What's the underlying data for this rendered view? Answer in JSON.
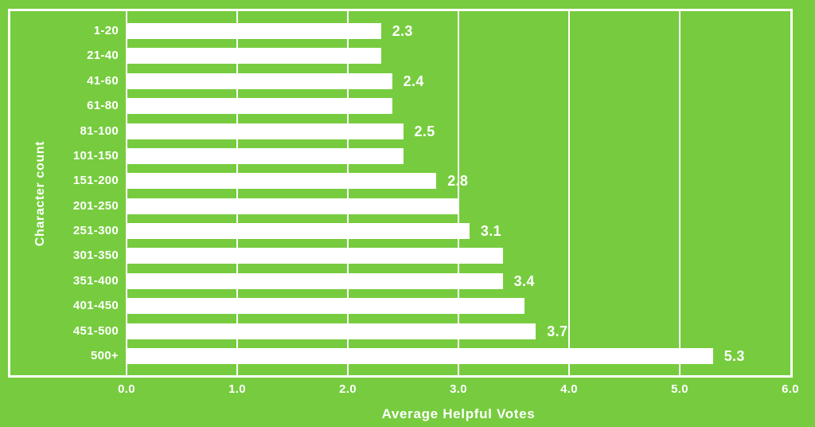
{
  "chart_data": {
    "type": "bar",
    "orientation": "horizontal",
    "xlabel": "Average Helpful Votes",
    "ylabel": "Character count",
    "categories": [
      "1-20",
      "21-40",
      "41-60",
      "61-80",
      "81-100",
      "101-150",
      "151-200",
      "201-250",
      "251-300",
      "301-350",
      "351-400",
      "401-450",
      "451-500",
      "500+"
    ],
    "values": [
      2.3,
      2.3,
      2.4,
      2.4,
      2.5,
      2.5,
      2.8,
      3.0,
      3.1,
      3.4,
      3.4,
      3.6,
      3.7,
      5.3
    ],
    "bar_labels": [
      "2.3",
      "",
      "2.4",
      "",
      "2.5",
      "",
      "2.8",
      "",
      "3.1",
      "",
      "3.4",
      "",
      "3.7",
      "5.3"
    ],
    "xlim": [
      0,
      6
    ],
    "x_ticks": [
      "0.0",
      "1.0",
      "2.0",
      "3.0",
      "4.0",
      "5.0",
      "6.0"
    ],
    "grid": "vertical white gridlines at every 1.0 tick, drawn behind bars",
    "legend": "none",
    "colors": {
      "background": "#76cc3e",
      "bar": "#ffffff",
      "text": "#ffffff",
      "gridline": "#ffffff",
      "frame_border": "#ffffff"
    }
  }
}
